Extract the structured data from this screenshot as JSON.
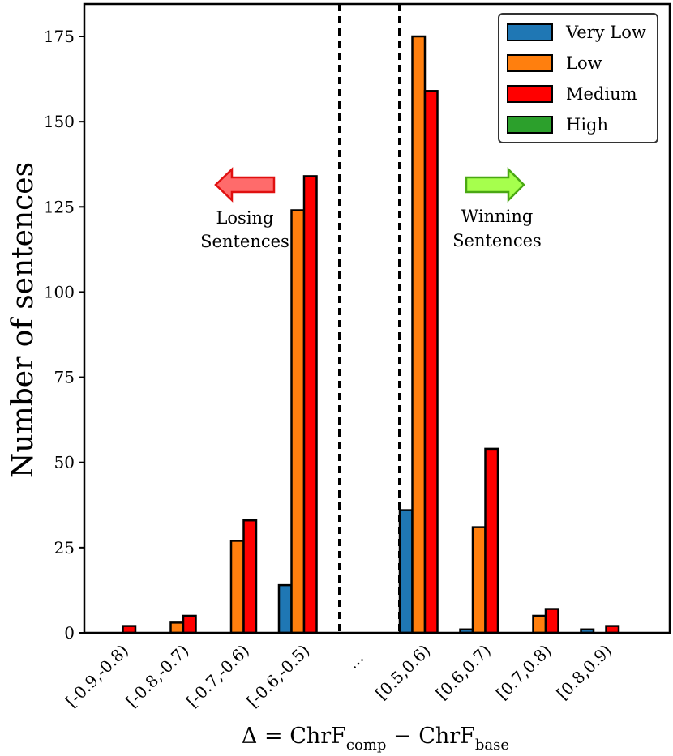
{
  "chart_data": {
    "type": "bar",
    "title": "",
    "ylabel": "Number of sentences",
    "xlabel": {
      "prefix": "Δ = ChrF",
      "sub1": "comp",
      "mid": " − ChrF",
      "sub2": "base"
    },
    "ylim": [
      0,
      185
    ],
    "yticks": [
      0,
      25,
      50,
      75,
      100,
      125,
      150,
      175
    ],
    "grid": false,
    "legend_position": "top-right",
    "categories": [
      "[-0.9,-0.8)",
      "[-0.8,-0.7)",
      "[-0.7,-0.6)",
      "[-0.6,-0.5)",
      "...",
      "[0.5,0.6)",
      "[0.6,0.7)",
      "[0.7,0.8)",
      "[0.8,0.9)"
    ],
    "series": [
      {
        "name": "Very Low",
        "color": "#1f77b4",
        "values": [
          0,
          0,
          0,
          14,
          null,
          36,
          1,
          0,
          1
        ]
      },
      {
        "name": "Low",
        "color": "#ff7f0e",
        "values": [
          0,
          3,
          27,
          124,
          null,
          175,
          31,
          5,
          0
        ]
      },
      {
        "name": "Medium",
        "color": "#ff0000",
        "values": [
          2,
          5,
          33,
          134,
          null,
          159,
          54,
          7,
          2
        ]
      },
      {
        "name": "High",
        "color": "#2ca02c",
        "values": [
          0,
          0,
          0,
          0,
          null,
          0,
          0,
          0,
          0
        ]
      }
    ],
    "annotations": [
      {
        "name": "losing",
        "lines": [
          "Losing",
          "Sentences"
        ],
        "arrow": "left",
        "color": "#ff6b6b",
        "stroke": "#e01010"
      },
      {
        "name": "winning",
        "lines": [
          "Winning",
          "Sentences"
        ],
        "arrow": "right",
        "color": "#a6ff4d",
        "stroke": "#4aa813"
      }
    ]
  }
}
